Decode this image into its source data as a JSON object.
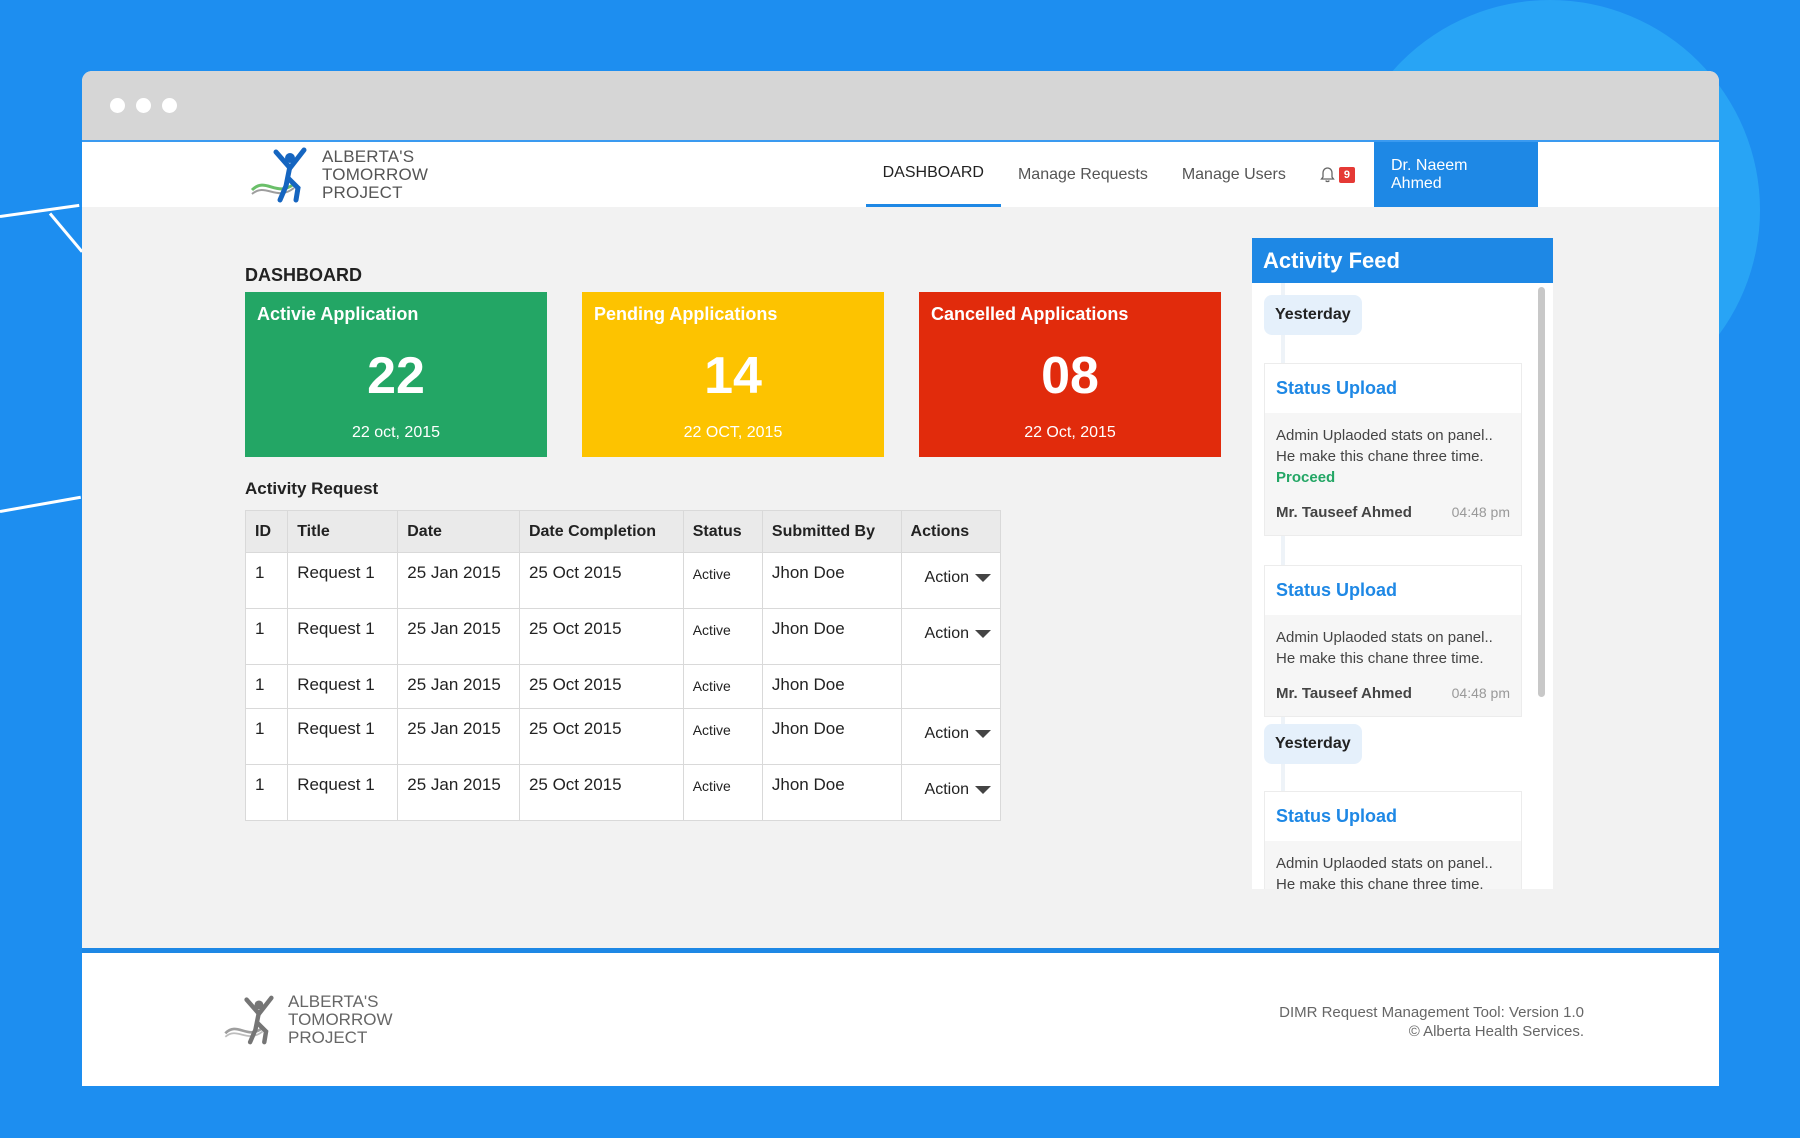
{
  "app": {
    "logo_text_line1": "Alberta's",
    "logo_text_line2": "Tomorrow",
    "logo_text_line3": "Project"
  },
  "nav": {
    "items": [
      {
        "label": "DASHBOARD"
      },
      {
        "label": "Manage Requests"
      },
      {
        "label": "Manage Users"
      }
    ],
    "notification_count": "9",
    "user_name": "Dr. Naeem Ahmed"
  },
  "dashboard": {
    "title": "DASHBOARD",
    "cards": [
      {
        "title": "Activie Application",
        "value": "22",
        "date": "22 oct, 2015",
        "color": "#23a665"
      },
      {
        "title": "Pending Applications",
        "value": "14",
        "date": "22 OCT, 2015",
        "color": "#fdc300"
      },
      {
        "title": "Cancelled Applications",
        "value": "08",
        "date": "22 Oct, 2015",
        "color": "#e12b0c"
      }
    ]
  },
  "activity_request": {
    "title": "Activity Request",
    "columns": [
      "ID",
      "Title",
      "Date",
      "Date Completion",
      "Status",
      "Submitted By",
      "Actions"
    ],
    "rows": [
      {
        "id": "1",
        "title": "Request 1",
        "date": "25 Jan 2015",
        "completion": "25 Oct 2015",
        "status": "Active",
        "submitted_by": "Jhon Doe",
        "action": "Action"
      },
      {
        "id": "1",
        "title": "Request 1",
        "date": "25 Jan 2015",
        "completion": "25 Oct 2015",
        "status": "Active",
        "submitted_by": "Jhon Doe",
        "action": "Action"
      },
      {
        "id": "1",
        "title": "Request 1",
        "date": "25 Jan 2015",
        "completion": "25 Oct 2015",
        "status": "Active",
        "submitted_by": "Jhon Doe",
        "action": ""
      },
      {
        "id": "1",
        "title": "Request 1",
        "date": "25 Jan 2015",
        "completion": "25 Oct 2015",
        "status": "Active",
        "submitted_by": "Jhon Doe",
        "action": "Action"
      },
      {
        "id": "1",
        "title": "Request 1",
        "date": "25 Jan 2015",
        "completion": "25 Oct 2015",
        "status": "Active",
        "submitted_by": "Jhon Doe",
        "action": "Action"
      }
    ]
  },
  "feed": {
    "title": "Activity Feed",
    "groups": [
      {
        "label": "Yesterday"
      },
      {
        "label": "Yesterday"
      }
    ],
    "items": [
      {
        "title": "Status Upload",
        "line1": "Admin Uplaoded stats on panel..",
        "line2": "He make this chane three time.",
        "status": "Proceed",
        "author": "Mr. Tauseef Ahmed",
        "time": "04:48 pm"
      },
      {
        "title": "Status Upload",
        "line1": "Admin Uplaoded stats on panel..",
        "line2": "He make this chane three time.",
        "author": "Mr. Tauseef Ahmed",
        "time": "04:48 pm"
      },
      {
        "title": "Status Upload",
        "line1": "Admin Uplaoded stats on panel..",
        "line2": "He make this chane three time."
      }
    ]
  },
  "footer": {
    "line1": "DIMR Request Management Tool: Version 1.0",
    "line2": "© Alberta Health Services."
  },
  "icons": {
    "bell": "bell-icon",
    "caret": "chevron-down-icon",
    "logo": "logo-figure-icon"
  }
}
